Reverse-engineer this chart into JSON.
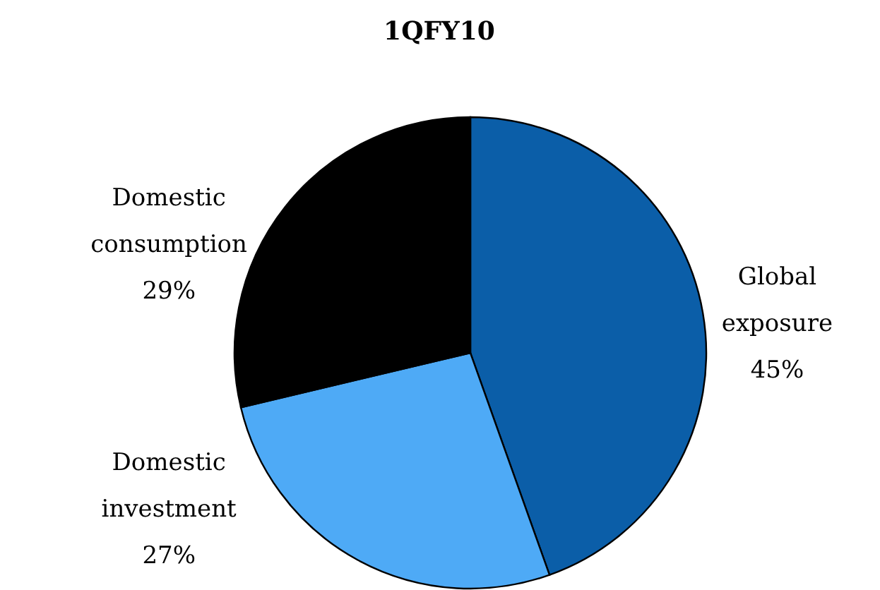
{
  "chart_data": {
    "type": "pie",
    "title": "1QFY10",
    "categories": [
      "Global exposure",
      "Domestic investment",
      "Domestic consumption"
    ],
    "values": [
      45,
      27,
      29
    ],
    "value_labels": [
      "45%",
      "27%",
      "29%"
    ],
    "colors": [
      "#0b5ea8",
      "#4eaaf6",
      "#000000"
    ]
  }
}
